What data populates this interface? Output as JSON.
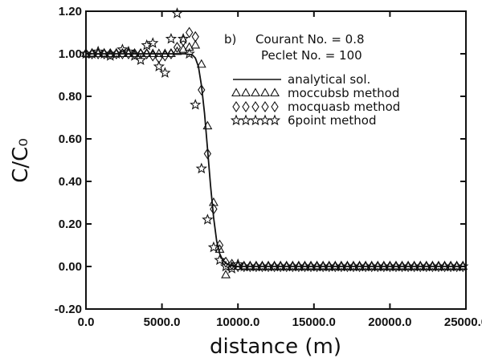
{
  "chart_data": {
    "type": "line",
    "xlabel": "distance  (m)",
    "ylabel": "C/C₀",
    "xlim": [
      0,
      25000
    ],
    "ylim": [
      -0.2,
      1.2
    ],
    "x_ticks": [
      "0.0",
      "5000.0",
      "10000.0",
      "15000.0",
      "20000.0",
      "25000.0"
    ],
    "y_ticks": [
      "-0.20",
      "0.00",
      "0.20",
      "0.40",
      "0.60",
      "0.80",
      "1.00",
      "1.20"
    ],
    "annotation": {
      "label": "b)",
      "lines": [
        "Courant No.  =  0.8",
        "Peclet No.  =  100"
      ]
    },
    "legend_position": "upper-right",
    "series": [
      {
        "name": "analytical sol.",
        "marker": "line",
        "x": [
          0,
          1000,
          2000,
          3000,
          4000,
          5000,
          6000,
          6500,
          7000,
          7200,
          7400,
          7600,
          7800,
          8000,
          8200,
          8400,
          8600,
          8800,
          9000,
          9200,
          9500,
          10000,
          12000,
          15000,
          20000,
          25000
        ],
        "y": [
          1.0,
          1.0,
          1.0,
          1.0,
          1.0,
          1.0,
          1.0,
          1.0,
          0.995,
          0.98,
          0.94,
          0.85,
          0.72,
          0.55,
          0.38,
          0.23,
          0.12,
          0.06,
          0.03,
          0.015,
          0.005,
          0.0,
          0.0,
          0.0,
          0.0,
          0.0
        ]
      },
      {
        "name": "moccubsb  method",
        "marker": "triangle",
        "x": [
          0,
          400,
          800,
          1200,
          1600,
          2000,
          2400,
          2800,
          3200,
          3600,
          4000,
          4400,
          4800,
          5200,
          5600,
          6000,
          6400,
          6800,
          7200,
          7600,
          8000,
          8400,
          8800,
          9200,
          9600,
          10000,
          10400,
          10800,
          11200,
          11600,
          12000,
          12400,
          12800,
          13200,
          13600,
          14000,
          14400,
          14800,
          15200,
          15600,
          16000,
          16400,
          16800,
          17200,
          17600,
          18000,
          18400,
          18800,
          19200,
          19600,
          20000,
          20400,
          20800,
          21200,
          21600,
          22000,
          22400,
          22800,
          23200,
          23600,
          24000,
          24400,
          24800
        ],
        "y": [
          1.0,
          1.0,
          1.0,
          1.0,
          1.0,
          1.0,
          1.0,
          1.0,
          1.0,
          1.0,
          1.0,
          1.0,
          1.0,
          1.0,
          1.0,
          1.01,
          1.02,
          1.03,
          1.04,
          0.95,
          0.66,
          0.3,
          0.08,
          -0.04,
          0.0,
          0.0,
          0.0,
          0.0,
          0.0,
          0.0,
          0.0,
          0.0,
          0.0,
          0.0,
          0.0,
          0.0,
          0.0,
          0.0,
          0.0,
          0.0,
          0.0,
          0.0,
          0.0,
          0.0,
          0.0,
          0.0,
          0.0,
          0.0,
          0.0,
          0.0,
          0.0,
          0.0,
          0.0,
          0.0,
          0.0,
          0.0,
          0.0,
          0.0,
          0.0,
          0.0,
          0.0,
          0.0,
          0.0
        ]
      },
      {
        "name": "mocquasb  method",
        "marker": "diamond",
        "x": [
          0,
          400,
          800,
          1200,
          1600,
          2000,
          2400,
          2800,
          3200,
          3600,
          4000,
          4400,
          4800,
          5200,
          5600,
          6000,
          6400,
          6800,
          7200,
          7600,
          8000,
          8400,
          8800,
          9200,
          9600,
          10000,
          10400,
          10800,
          11200,
          11600,
          12000,
          12400,
          12800,
          13200,
          13600,
          14000,
          14400,
          14800,
          15200,
          15600,
          16000,
          16400,
          16800,
          17200,
          17600,
          18000,
          18400,
          18800,
          19200,
          19600,
          20000,
          20400,
          20800,
          21200,
          21600,
          22000,
          22400,
          22800,
          23200,
          23600,
          24000,
          24400,
          24800
        ],
        "y": [
          1.0,
          1.0,
          1.0,
          1.0,
          1.0,
          1.0,
          1.0,
          1.0,
          1.0,
          1.0,
          1.0,
          0.99,
          0.98,
          0.99,
          1.0,
          1.03,
          1.06,
          1.1,
          1.08,
          0.83,
          0.53,
          0.27,
          0.1,
          0.02,
          0.01,
          0.0,
          0.0,
          0.0,
          0.0,
          0.0,
          0.0,
          0.0,
          0.0,
          0.0,
          0.0,
          0.0,
          0.0,
          0.0,
          0.0,
          0.0,
          0.0,
          0.0,
          0.0,
          0.0,
          0.0,
          0.0,
          0.0,
          0.0,
          0.0,
          0.0,
          0.0,
          0.0,
          0.0,
          0.0,
          0.0,
          0.0,
          0.0,
          0.0,
          0.0,
          0.0,
          0.0,
          0.0,
          0.0
        ]
      },
      {
        "name": "6point  method",
        "marker": "star",
        "x": [
          0,
          400,
          800,
          1200,
          1600,
          2000,
          2400,
          2800,
          3200,
          3600,
          4000,
          4400,
          4800,
          5200,
          5600,
          6000,
          6400,
          6800,
          7200,
          7600,
          8000,
          8400,
          8800,
          9200,
          9600,
          10000,
          10400,
          10800,
          11200,
          11600,
          12000,
          12400,
          12800,
          13200,
          13600,
          14000,
          14400,
          14800,
          15200,
          15600,
          16000,
          16400,
          16800,
          17200,
          17600,
          18000,
          18400,
          18800,
          19200,
          19600,
          20000,
          20400,
          20800,
          21200,
          21600,
          22000,
          22400,
          22800,
          23200,
          23600,
          24000,
          24400,
          24800
        ],
        "y": [
          1.0,
          1.0,
          1.01,
          1.0,
          0.99,
          1.0,
          1.02,
          1.01,
          0.99,
          0.97,
          1.04,
          1.05,
          0.94,
          0.91,
          1.07,
          1.19,
          1.07,
          1.0,
          0.76,
          0.46,
          0.22,
          0.09,
          0.03,
          0.0,
          -0.01,
          0.01,
          0.0,
          0.0,
          0.0,
          0.0,
          0.0,
          0.0,
          0.0,
          0.0,
          0.0,
          0.0,
          0.0,
          0.0,
          0.0,
          0.0,
          0.0,
          0.0,
          0.0,
          0.0,
          0.0,
          0.0,
          0.0,
          0.0,
          0.0,
          0.0,
          0.0,
          0.0,
          0.0,
          0.0,
          0.0,
          0.0,
          0.0,
          0.0,
          0.0,
          0.0,
          0.0,
          0.0,
          0.0
        ]
      }
    ]
  }
}
